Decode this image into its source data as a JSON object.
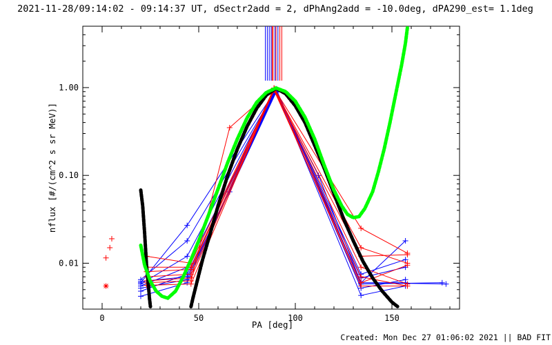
{
  "chart_data": {
    "type": "line",
    "title": "2021-11-28/09:14:02 - 09:14:37 UT, dSectr2add = 2, dPhAng2add = -10.0deg, dPA290_est=  1.1deg",
    "xlabel": "PA [deg]",
    "ylabel": "nflux [#/(cm^2 s sr MeV)]",
    "xlim": [
      -10,
      185
    ],
    "ylim": [
      0.003,
      5.0
    ],
    "yscale": "log",
    "xticks": [
      0,
      50,
      100,
      150
    ],
    "xtick_labels": [
      "0",
      "50",
      "100",
      "150"
    ],
    "yticks": [
      0.01,
      0.1,
      1.0
    ],
    "ytick_labels": [
      "0.01",
      "0.10",
      "1.00"
    ],
    "footer": "Created: Mon Dec 27 01:06:02 2021 || BAD FIT",
    "colors": {
      "blue": "#0000ff",
      "red": "#ff0000",
      "black": "#000000",
      "green": "#00ff00"
    },
    "blue_lines": [
      [
        [
          20,
          0.006
        ],
        [
          44,
          0.027
        ],
        [
          90,
          0.95
        ],
        [
          134,
          0.0075
        ],
        [
          157,
          0.011
        ]
      ],
      [
        [
          20,
          0.0065
        ],
        [
          44,
          0.018
        ],
        [
          90,
          0.93
        ],
        [
          134,
          0.0068
        ],
        [
          157,
          0.009
        ]
      ],
      [
        [
          20,
          0.0058
        ],
        [
          44,
          0.012
        ],
        [
          90,
          0.97
        ],
        [
          134,
          0.006
        ],
        [
          157,
          0.018
        ]
      ],
      [
        [
          20,
          0.0055
        ],
        [
          44,
          0.009
        ],
        [
          90,
          0.9
        ],
        [
          134,
          0.0052
        ],
        [
          157,
          0.0065
        ]
      ],
      [
        [
          20,
          0.0048
        ],
        [
          44,
          0.0075
        ],
        [
          90,
          0.96
        ],
        [
          134,
          0.006
        ],
        [
          157,
          0.006
        ]
      ],
      [
        [
          20,
          0.0042
        ],
        [
          44,
          0.006
        ],
        [
          90,
          0.92
        ],
        [
          134,
          0.0043
        ],
        [
          157,
          0.0055
        ]
      ],
      [
        [
          20,
          0.0062
        ],
        [
          44,
          0.007
        ],
        [
          66,
          0.065
        ],
        [
          90,
          0.88
        ],
        [
          112,
          0.1
        ],
        [
          134,
          0.006
        ],
        [
          178,
          0.0058
        ]
      ],
      [
        [
          20,
          0.0052
        ],
        [
          44,
          0.0065
        ],
        [
          90,
          0.94
        ],
        [
          134,
          0.0058
        ],
        [
          176,
          0.006
        ]
      ]
    ],
    "red_lines": [
      [
        [
          23,
          0.012
        ],
        [
          46,
          0.01
        ],
        [
          89,
          0.97
        ],
        [
          134,
          0.015
        ],
        [
          158,
          0.01
        ]
      ],
      [
        [
          23,
          0.009
        ],
        [
          46,
          0.009
        ],
        [
          89,
          0.96
        ],
        [
          134,
          0.012
        ],
        [
          158,
          0.0125
        ]
      ],
      [
        [
          23,
          0.008
        ],
        [
          46,
          0.0085
        ],
        [
          89,
          0.99
        ],
        [
          134,
          0.009
        ],
        [
          158,
          0.0058
        ]
      ],
      [
        [
          23,
          0.007
        ],
        [
          46,
          0.0075
        ],
        [
          89,
          0.95
        ],
        [
          134,
          0.007
        ],
        [
          158,
          0.0055
        ]
      ],
      [
        [
          23,
          0.0063
        ],
        [
          46,
          0.0068
        ],
        [
          89,
          0.93
        ],
        [
          134,
          0.006
        ],
        [
          158,
          0.0095
        ]
      ],
      [
        [
          23,
          0.006
        ],
        [
          46,
          0.0063
        ],
        [
          66,
          0.35
        ],
        [
          89,
          0.98
        ],
        [
          134,
          0.025
        ],
        [
          158,
          0.013
        ]
      ],
      [
        [
          23,
          0.0056
        ],
        [
          46,
          0.0058
        ],
        [
          89,
          0.96
        ],
        [
          134,
          0.0055
        ],
        [
          158,
          0.0055
        ]
      ]
    ],
    "outlier_red_points": [
      [
        2,
        0.0115
      ],
      [
        4,
        0.015
      ],
      [
        5,
        0.019
      ]
    ],
    "outlier_red_star": [
      2,
      0.0055
    ],
    "spike_x_blue": [
      84.5,
      85.5,
      86.5,
      87.5,
      89.5,
      91
    ],
    "spike_x_red": [
      88,
      88.5,
      90,
      92,
      93
    ],
    "spike_top": 5.0,
    "spike_bottom": 1.2,
    "black_fit_left": [
      [
        20,
        0.068
      ],
      [
        21,
        0.045
      ],
      [
        22,
        0.022
      ],
      [
        23,
        0.0095
      ],
      [
        24,
        0.0055
      ],
      [
        24.5,
        0.004
      ],
      [
        25,
        0.0032
      ]
    ],
    "black_fit_main": [
      [
        46,
        0.0032
      ],
      [
        47,
        0.004
      ],
      [
        49,
        0.006
      ],
      [
        52,
        0.011
      ],
      [
        56,
        0.022
      ],
      [
        60,
        0.045
      ],
      [
        65,
        0.1
      ],
      [
        70,
        0.2
      ],
      [
        75,
        0.36
      ],
      [
        80,
        0.58
      ],
      [
        85,
        0.82
      ],
      [
        90,
        0.98
      ],
      [
        95,
        0.85
      ],
      [
        100,
        0.62
      ],
      [
        105,
        0.4
      ],
      [
        110,
        0.22
      ],
      [
        115,
        0.12
      ],
      [
        120,
        0.062
      ],
      [
        125,
        0.032
      ],
      [
        130,
        0.018
      ],
      [
        135,
        0.0105
      ],
      [
        140,
        0.0068
      ],
      [
        145,
        0.0048
      ],
      [
        150,
        0.0036
      ],
      [
        153,
        0.0032
      ]
    ],
    "green_fit": [
      [
        20,
        0.016
      ],
      [
        22,
        0.0095
      ],
      [
        25,
        0.0062
      ],
      [
        28,
        0.0048
      ],
      [
        31,
        0.0042
      ],
      [
        34,
        0.004
      ],
      [
        38,
        0.0048
      ],
      [
        42,
        0.007
      ],
      [
        46,
        0.011
      ],
      [
        50,
        0.018
      ],
      [
        55,
        0.035
      ],
      [
        60,
        0.07
      ],
      [
        65,
        0.14
      ],
      [
        70,
        0.26
      ],
      [
        75,
        0.45
      ],
      [
        80,
        0.68
      ],
      [
        85,
        0.88
      ],
      [
        90,
        0.99
      ],
      [
        95,
        0.9
      ],
      [
        100,
        0.7
      ],
      [
        105,
        0.46
      ],
      [
        110,
        0.26
      ],
      [
        115,
        0.13
      ],
      [
        120,
        0.068
      ],
      [
        124,
        0.045
      ],
      [
        127,
        0.036
      ],
      [
        130,
        0.033
      ],
      [
        133,
        0.034
      ],
      [
        136,
        0.042
      ],
      [
        140,
        0.065
      ],
      [
        143,
        0.11
      ],
      [
        146,
        0.2
      ],
      [
        149,
        0.4
      ],
      [
        152,
        0.85
      ],
      [
        155,
        1.8
      ],
      [
        157,
        3.2
      ],
      [
        158,
        4.8
      ]
    ]
  }
}
